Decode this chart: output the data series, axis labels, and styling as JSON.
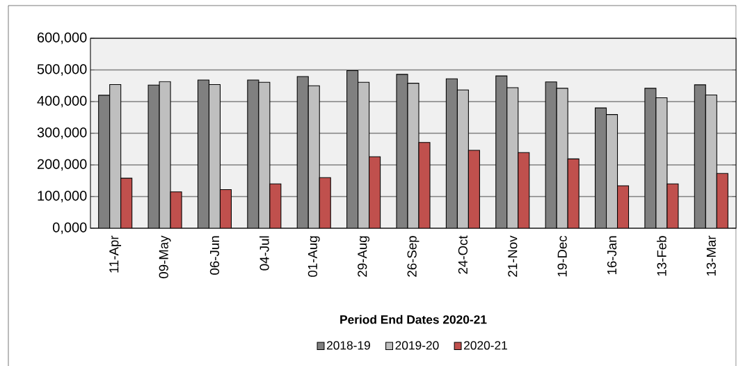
{
  "chart_data": {
    "type": "bar",
    "xlabel": "Period End Dates 2020-21",
    "categories": [
      "11-Apr",
      "09-May",
      "06-Jun",
      "04-Jul",
      "01-Aug",
      "29-Aug",
      "26-Sep",
      "24-Oct",
      "21-Nov",
      "19-Dec",
      "16-Jan",
      "13-Feb",
      "13-Mar"
    ],
    "series": [
      {
        "name": "2018-19",
        "color": "#808080",
        "values": [
          420000,
          452000,
          468000,
          468000,
          479000,
          498000,
          486000,
          472000,
          481000,
          462000,
          380000,
          442000,
          453000
        ]
      },
      {
        "name": "2019-20",
        "color": "#bfbfbf",
        "values": [
          454000,
          463000,
          454000,
          461000,
          450000,
          461000,
          458000,
          437000,
          444000,
          442000,
          359000,
          412000,
          421000
        ]
      },
      {
        "name": "2020-21",
        "color": "#c0504d",
        "values": [
          158000,
          115000,
          122000,
          140000,
          160000,
          226000,
          271000,
          246000,
          239000,
          219000,
          134000,
          140000,
          173000
        ]
      }
    ],
    "ylim": [
      0,
      600000
    ],
    "yticks": [
      {
        "value": 0,
        "label": "0,000"
      },
      {
        "value": 100000,
        "label": "100,000"
      },
      {
        "value": 200000,
        "label": "200,000"
      },
      {
        "value": 300000,
        "label": "300,000"
      },
      {
        "value": 400000,
        "label": "400,000"
      },
      {
        "value": 500000,
        "label": "500,000"
      },
      {
        "value": 600000,
        "label": "600,000"
      }
    ],
    "grid": "y",
    "legend": "bottom"
  }
}
